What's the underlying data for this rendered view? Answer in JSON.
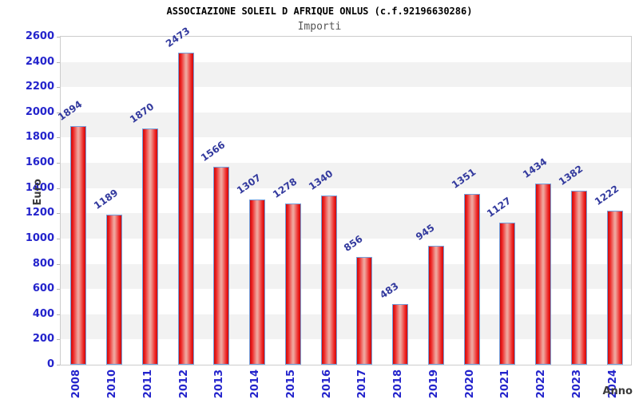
{
  "chart_data": {
    "type": "bar",
    "title": "ASSOCIAZIONE SOLEIL D AFRIQUE ONLUS (c.f.92196630286)",
    "subtitle": "Importi",
    "xlabel": "Anno",
    "ylabel": "Euro",
    "categories": [
      "2008",
      "2010",
      "2011",
      "2012",
      "2013",
      "2014",
      "2015",
      "2016",
      "2017",
      "2018",
      "2019",
      "2020",
      "2021",
      "2022",
      "2023",
      "2024"
    ],
    "values": [
      1894,
      1189,
      1870,
      2473,
      1566,
      1307,
      1278,
      1340,
      856,
      483,
      945,
      1351,
      1127,
      1434,
      1382,
      1222
    ],
    "ylim": [
      0,
      2600
    ],
    "y_ticks": [
      0,
      200,
      400,
      600,
      800,
      1000,
      1200,
      1400,
      1600,
      1800,
      2000,
      2200,
      2400,
      2600
    ],
    "grid": "alternating horizontal bands every 200, white/gray, starting white at 0",
    "legend": "none",
    "colors": {
      "bar_edge": "#c80b0b",
      "bar_mid": "#efa39b",
      "bar_border": "#74a0dc",
      "value_label": "#333a9e",
      "axis_tick_label": "#2424cc",
      "title": "#000000",
      "subtitle": "#555555",
      "axis_title": "#3b3b3b",
      "band_gray": "#f2f2f2",
      "band_white": "#ffffff",
      "plot_border": "#cccccc"
    }
  }
}
